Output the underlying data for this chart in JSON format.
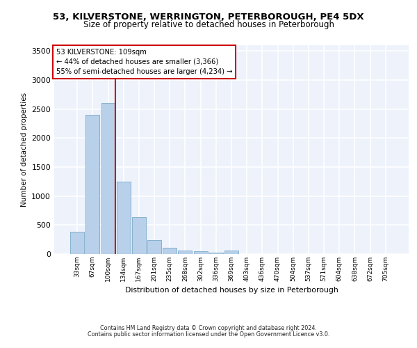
{
  "title_line1": "53, KILVERSTONE, WERRINGTON, PETERBOROUGH, PE4 5DX",
  "title_line2": "Size of property relative to detached houses in Peterborough",
  "xlabel": "Distribution of detached houses by size in Peterborough",
  "ylabel": "Number of detached properties",
  "footer_line1": "Contains HM Land Registry data © Crown copyright and database right 2024.",
  "footer_line2": "Contains public sector information licensed under the Open Government Licence v3.0.",
  "bar_labels": [
    "33sqm",
    "67sqm",
    "100sqm",
    "134sqm",
    "167sqm",
    "201sqm",
    "235sqm",
    "268sqm",
    "302sqm",
    "336sqm",
    "369sqm",
    "403sqm",
    "436sqm",
    "470sqm",
    "504sqm",
    "537sqm",
    "571sqm",
    "604sqm",
    "638sqm",
    "672sqm",
    "705sqm"
  ],
  "bar_values": [
    390,
    2400,
    2600,
    1250,
    640,
    240,
    105,
    60,
    45,
    25,
    55,
    0,
    0,
    0,
    0,
    0,
    0,
    0,
    0,
    0,
    0
  ],
  "bar_color": "#b8d0ea",
  "bar_edge_color": "#7aaac8",
  "vline_color": "#cc0000",
  "annotation_box_edgecolor": "#cc0000",
  "annotation_line1": "53 KILVERSTONE: 109sqm",
  "annotation_line2": "← 44% of detached houses are smaller (3,366)",
  "annotation_line3": "55% of semi-detached houses are larger (4,234) →",
  "vline_x": 2.45,
  "ylim": [
    0,
    3600
  ],
  "yticks": [
    0,
    500,
    1000,
    1500,
    2000,
    2500,
    3000,
    3500
  ],
  "bg_color": "#edf2fb",
  "grid_color": "#ffffff",
  "title_fontsize": 9.5,
  "subtitle_fontsize": 8.5,
  "ylabel_fontsize": 7.5,
  "xlabel_fontsize": 7.8,
  "tick_fontsize": 6.5,
  "annotation_fontsize": 7.2,
  "footer_fontsize": 5.8
}
